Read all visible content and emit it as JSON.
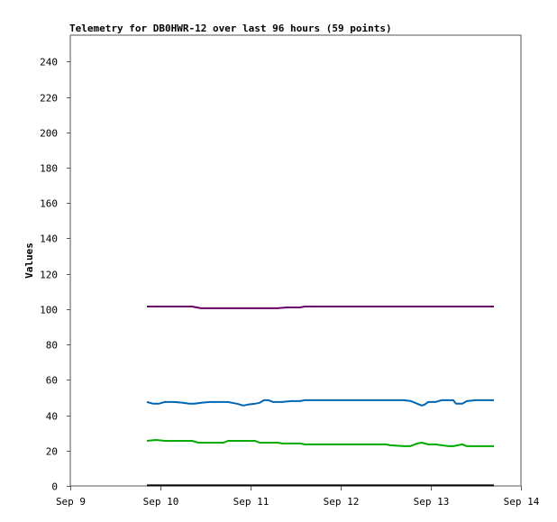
{
  "chart_data": {
    "type": "line",
    "title": "Telemetry for DB0HWR-12 over last 96 hours (59 points)",
    "xlabel": "",
    "ylabel": "Values",
    "x_ticks": [
      "Sep 9",
      "Sep 10",
      "Sep 11",
      "Sep 12",
      "Sep 13",
      "Sep 14"
    ],
    "x_tick_values": [
      9,
      10,
      11,
      12,
      13,
      14
    ],
    "xlim": [
      9,
      14
    ],
    "ylim": [
      0,
      255
    ],
    "y_ticks": [
      0,
      20,
      40,
      60,
      80,
      100,
      120,
      140,
      160,
      180,
      200,
      220,
      240
    ],
    "grid": false,
    "series": [
      {
        "color": "#660066",
        "points": [
          [
            9.85,
            101.5
          ],
          [
            10.1,
            101.5
          ],
          [
            10.35,
            101.5
          ],
          [
            10.45,
            100.5
          ],
          [
            10.6,
            100.5
          ],
          [
            10.8,
            100.5
          ],
          [
            11.0,
            100.5
          ],
          [
            11.2,
            100.5
          ],
          [
            11.3,
            100.5
          ],
          [
            11.4,
            101
          ],
          [
            11.55,
            101
          ],
          [
            11.6,
            101.5
          ],
          [
            11.8,
            101.5
          ],
          [
            12.0,
            101.5
          ],
          [
            12.3,
            101.5
          ],
          [
            12.6,
            101.5
          ],
          [
            12.9,
            101.5
          ],
          [
            13.2,
            101.5
          ],
          [
            13.5,
            101.5
          ],
          [
            13.7,
            101.5
          ]
        ]
      },
      {
        "color": "#0066b3",
        "points": [
          [
            9.85,
            47.5
          ],
          [
            9.92,
            46.5
          ],
          [
            9.98,
            46.5
          ],
          [
            10.05,
            47.5
          ],
          [
            10.15,
            47.5
          ],
          [
            10.25,
            47
          ],
          [
            10.32,
            46.5
          ],
          [
            10.38,
            46.5
          ],
          [
            10.45,
            47
          ],
          [
            10.55,
            47.5
          ],
          [
            10.65,
            47.5
          ],
          [
            10.75,
            47.5
          ],
          [
            10.85,
            46.5
          ],
          [
            10.92,
            45.5
          ],
          [
            10.97,
            46
          ],
          [
            11.05,
            46.5
          ],
          [
            11.1,
            47
          ],
          [
            11.15,
            48.5
          ],
          [
            11.2,
            48.5
          ],
          [
            11.25,
            47.5
          ],
          [
            11.35,
            47.5
          ],
          [
            11.45,
            48
          ],
          [
            11.55,
            48
          ],
          [
            11.6,
            48.5
          ],
          [
            11.7,
            48.5
          ],
          [
            11.9,
            48.5
          ],
          [
            12.1,
            48.5
          ],
          [
            12.3,
            48.5
          ],
          [
            12.5,
            48.5
          ],
          [
            12.7,
            48.5
          ],
          [
            12.78,
            48
          ],
          [
            12.85,
            46.5
          ],
          [
            12.9,
            45.5
          ],
          [
            12.93,
            46
          ],
          [
            12.97,
            47.5
          ],
          [
            13.05,
            47.5
          ],
          [
            13.12,
            48.5
          ],
          [
            13.25,
            48.5
          ],
          [
            13.28,
            46.5
          ],
          [
            13.35,
            46.5
          ],
          [
            13.4,
            48
          ],
          [
            13.5,
            48.5
          ],
          [
            13.7,
            48.5
          ]
        ]
      },
      {
        "color": "#00aa00",
        "points": [
          [
            9.85,
            25.5
          ],
          [
            9.95,
            26
          ],
          [
            10.05,
            25.5
          ],
          [
            10.2,
            25.5
          ],
          [
            10.35,
            25.5
          ],
          [
            10.42,
            24.5
          ],
          [
            10.6,
            24.5
          ],
          [
            10.7,
            24.5
          ],
          [
            10.75,
            25.5
          ],
          [
            10.9,
            25.5
          ],
          [
            11.05,
            25.5
          ],
          [
            11.1,
            24.5
          ],
          [
            11.3,
            24.5
          ],
          [
            11.35,
            24
          ],
          [
            11.55,
            24
          ],
          [
            11.6,
            23.5
          ],
          [
            11.8,
            23.5
          ],
          [
            12.0,
            23.5
          ],
          [
            12.2,
            23.5
          ],
          [
            12.4,
            23.5
          ],
          [
            12.5,
            23.5
          ],
          [
            12.55,
            23
          ],
          [
            12.7,
            22.5
          ],
          [
            12.77,
            22.5
          ],
          [
            12.85,
            24
          ],
          [
            12.9,
            24.5
          ],
          [
            12.97,
            23.5
          ],
          [
            13.05,
            23.5
          ],
          [
            13.12,
            23
          ],
          [
            13.2,
            22.5
          ],
          [
            13.25,
            22.5
          ],
          [
            13.3,
            23
          ],
          [
            13.35,
            23.5
          ],
          [
            13.4,
            22.5
          ],
          [
            13.55,
            22.5
          ],
          [
            13.7,
            22.5
          ]
        ]
      },
      {
        "color": "#000000",
        "points": [
          [
            9.85,
            0.3
          ],
          [
            13.7,
            0.3
          ]
        ]
      }
    ]
  }
}
